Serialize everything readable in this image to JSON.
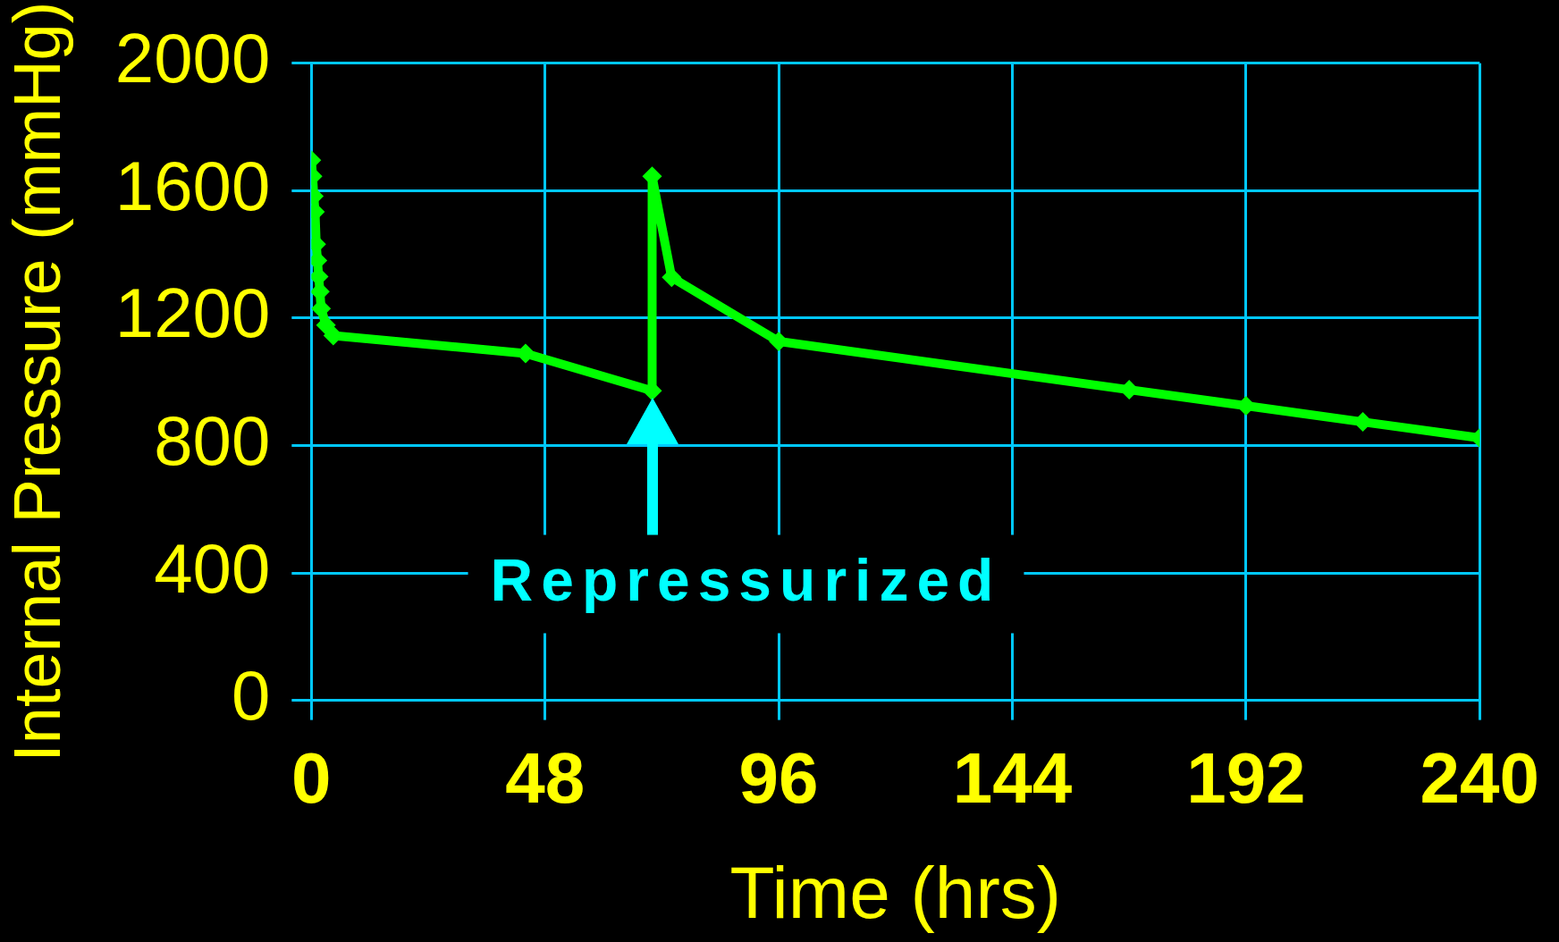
{
  "chart_data": {
    "type": "line",
    "xlabel": "Time (hrs)",
    "ylabel": "Internal Pressure (mmHg)",
    "x": [
      0,
      0.25,
      0.5,
      0.75,
      1,
      1.25,
      1.5,
      1.75,
      2,
      3,
      4.5,
      44,
      70,
      70,
      74,
      96,
      168,
      192,
      216,
      240
    ],
    "series": [
      {
        "color": "#00ff00",
        "values": [
          1696,
          1645,
          1583,
          1534,
          1432,
          1381,
          1330,
          1283,
          1230,
          1178,
          1145,
          1089,
          972,
          1645,
          1328,
          1127,
          975,
          925,
          874,
          824
        ]
      }
    ],
    "xlim": [
      0,
      240
    ],
    "xticks": [
      0,
      48,
      96,
      144,
      192,
      240
    ],
    "ylim": [
      0,
      2000
    ],
    "yticks": [
      0,
      400,
      800,
      1200,
      1600,
      2000
    ],
    "grid": true,
    "legend": false,
    "marker": "diamond",
    "line_style": "solid",
    "annotations": [
      {
        "text": "Repressurized",
        "x": 70,
        "y": 972
      }
    ]
  }
}
